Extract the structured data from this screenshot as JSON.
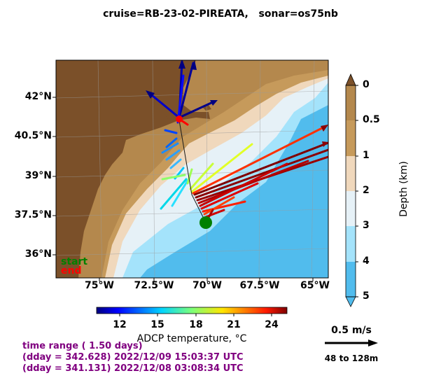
{
  "title": "cruise=RB-23-02-PIREATA,   sonar=os75nb",
  "map": {
    "lat_ticks": [
      "42°N",
      "40.5°N",
      "39°N",
      "37.5°N",
      "36°N"
    ],
    "lon_ticks": [
      "75°W",
      "72.5°W",
      "70°W",
      "67.5°W",
      "65°W"
    ],
    "legend": {
      "start": "start",
      "end": "end",
      "start_color": "#008000",
      "end_color": "#ff0000"
    }
  },
  "depth_colorbar": {
    "title": "Depth (km)",
    "ticks": [
      "0",
      "0.5",
      "1",
      "2",
      "3",
      "4",
      "5"
    ],
    "colors": [
      "#b4884d",
      "#c69a5b",
      "#f0d8bc",
      "#e6f1f7",
      "#a4e3fb",
      "#51bced"
    ]
  },
  "temp_colorbar": {
    "title": "ADCP temperature, °C",
    "ticks": [
      "12",
      "15",
      "18",
      "21",
      "24"
    ]
  },
  "info": {
    "line1": "time range ( 1.50 days)",
    "line2": "(dday = 342.628) 2022/12/09 15:03:37 UTC",
    "line3": "(dday = 341.131) 2022/12/08 03:08:34 UTC"
  },
  "scale": {
    "label": "0.5 m/s",
    "range": "48 to 128m"
  }
}
